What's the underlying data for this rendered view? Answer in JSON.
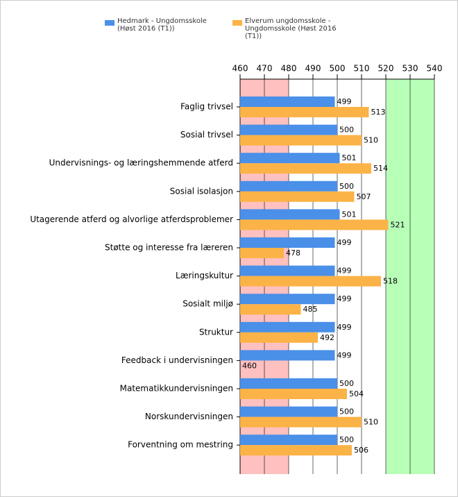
{
  "chart_data": {
    "type": "hbar",
    "categories": [
      "Faglig trivsel",
      "Sosial trivsel",
      "Undervisnings- og læringshemmende atferd",
      "Sosial isolasjon",
      "Utagerende atferd og alvorlige atferdsproblemer",
      "Støtte og interesse fra læreren",
      "Læringskultur",
      "Sosialt miljø",
      "Struktur",
      "Feedback i undervisningen",
      "Matematikkundervisningen",
      "Norskundervisningen",
      "Forventning om mestring"
    ],
    "series": [
      {
        "name": "Hedmark - Ungdomsskole (Høst 2016 (T1))",
        "color": "#4a8fe8",
        "values": [
          499,
          500,
          501,
          500,
          501,
          499,
          499,
          499,
          499,
          499,
          500,
          500,
          500
        ]
      },
      {
        "name": "Elverum ungdomsskole - Ungdomsskole (Høst 2016 (T1))",
        "color": "#fbb347",
        "values": [
          513,
          510,
          514,
          507,
          521,
          478,
          518,
          485,
          492,
          460,
          504,
          510,
          506
        ]
      }
    ],
    "xlim": [
      460,
      540
    ],
    "xticks": [
      460,
      470,
      480,
      490,
      500,
      510,
      520,
      530,
      540
    ],
    "bands": [
      {
        "from": 460,
        "to": 480,
        "color": "#ffc0c0"
      },
      {
        "from": 520,
        "to": 540,
        "color": "#b8ffb8"
      }
    ],
    "grid": true
  }
}
